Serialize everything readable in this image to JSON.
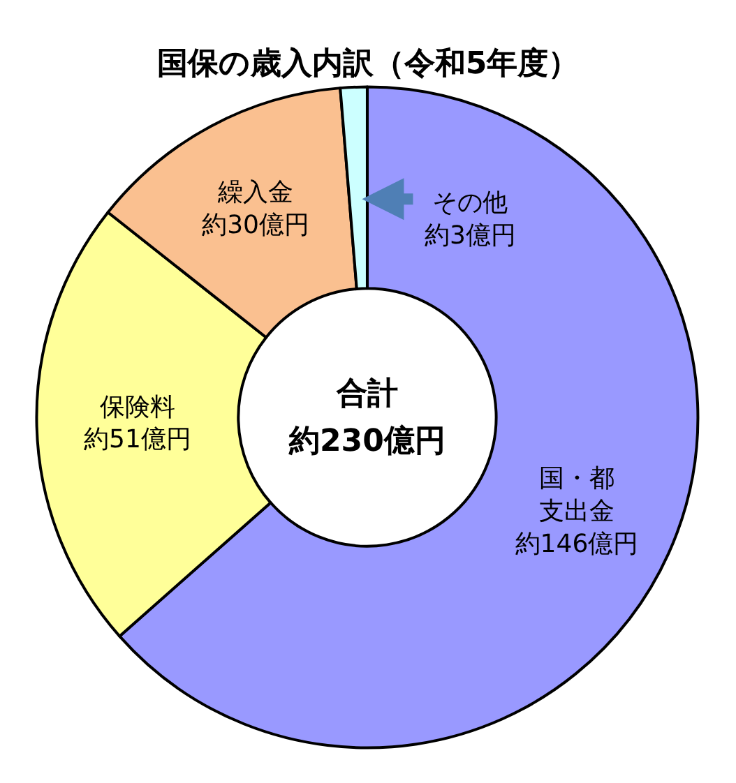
{
  "chart_data": {
    "type": "donut",
    "title": "国保の歳入内訳（令和5年度）",
    "categories": [
      "国・都支出金",
      "保険料",
      "繰入金",
      "その他"
    ],
    "values": [
      146,
      51,
      30,
      3
    ],
    "colors": [
      "#9999ff",
      "#ffff99",
      "#fac090",
      "#ccffff"
    ],
    "value_labels": [
      "約146億円",
      "約51億円",
      "約30億円",
      "約3億円"
    ],
    "annotations": [
      "合計",
      "約230億円"
    ],
    "legend": false
  }
}
